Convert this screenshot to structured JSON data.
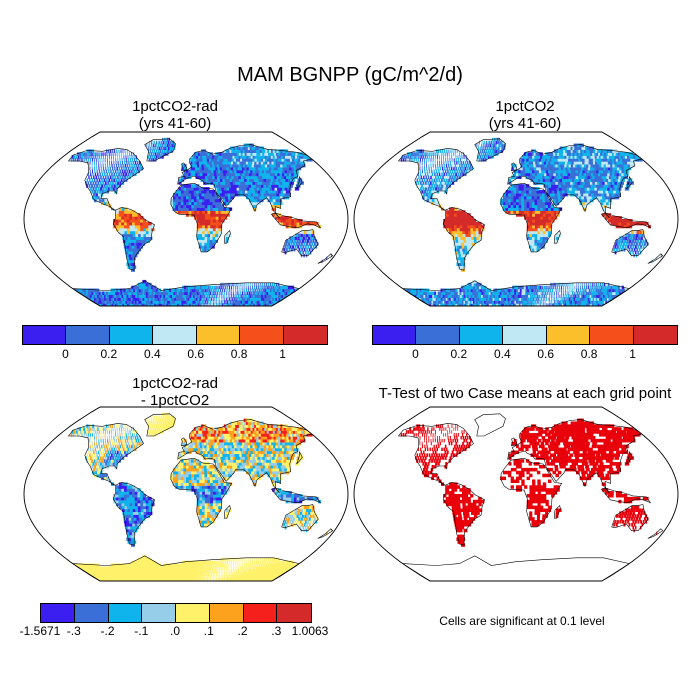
{
  "title": "MAM BGNPP (gC/m^2/d)",
  "panels": {
    "top_left": {
      "title_line1": "1pctCO2-rad",
      "title_line2": "(yrs 41-60)"
    },
    "top_right": {
      "title_line1": "1pctCO2",
      "title_line2": "(yrs 41-60)"
    },
    "bottom_left": {
      "title_line1": "1pctCO2-rad",
      "title_line2": "- 1pctCO2"
    },
    "bottom_right": {
      "title_line1": "T-Test of two Case means at each grid point"
    }
  },
  "colorbar_top": {
    "colors": [
      "#3b1ff0",
      "#3a6fd8",
      "#10b4ec",
      "#bfe8f4",
      "#fcbf2c",
      "#f5501c",
      "#d42a2a"
    ],
    "labels": [
      "0",
      "0.2",
      "0.4",
      "0.6",
      "0.8",
      "1"
    ]
  },
  "colorbar_bottom": {
    "colors": [
      "#3b1ff0",
      "#3a6fd8",
      "#10b4ec",
      "#96cde8",
      "#fff26a",
      "#fca21c",
      "#f5201c",
      "#d42a2a"
    ],
    "labels": [
      "-1.5671",
      "-.3",
      "-.2",
      "-.1",
      ".0",
      ".1",
      ".2",
      ".3",
      "1.0063"
    ]
  },
  "significance_note": "Cells are significant at 0.1 level",
  "significance_color": "#e8000b"
}
